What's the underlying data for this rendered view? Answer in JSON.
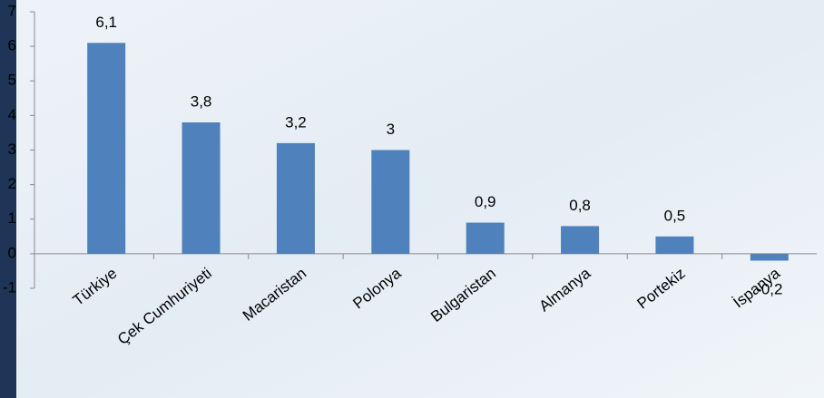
{
  "chart_data": {
    "type": "bar",
    "categories": [
      "Türkiye",
      "Çek Cumhuriyeti",
      "Macaristan",
      "Polonya",
      "Bulgaristan",
      "Almanya",
      "Portekiz",
      "İspanya"
    ],
    "values": [
      6.1,
      3.8,
      3.2,
      3,
      0.9,
      0.8,
      0.5,
      -0.2
    ],
    "value_labels": [
      "6,1",
      "3,8",
      "3,2",
      "3",
      "0,9",
      "0,8",
      "0,5",
      "-0,2"
    ],
    "color": "#4f81bd",
    "ylim": [
      -1,
      7
    ],
    "yticks": [
      -1,
      0,
      1,
      2,
      3,
      4,
      5,
      6,
      7
    ],
    "grid": false
  }
}
